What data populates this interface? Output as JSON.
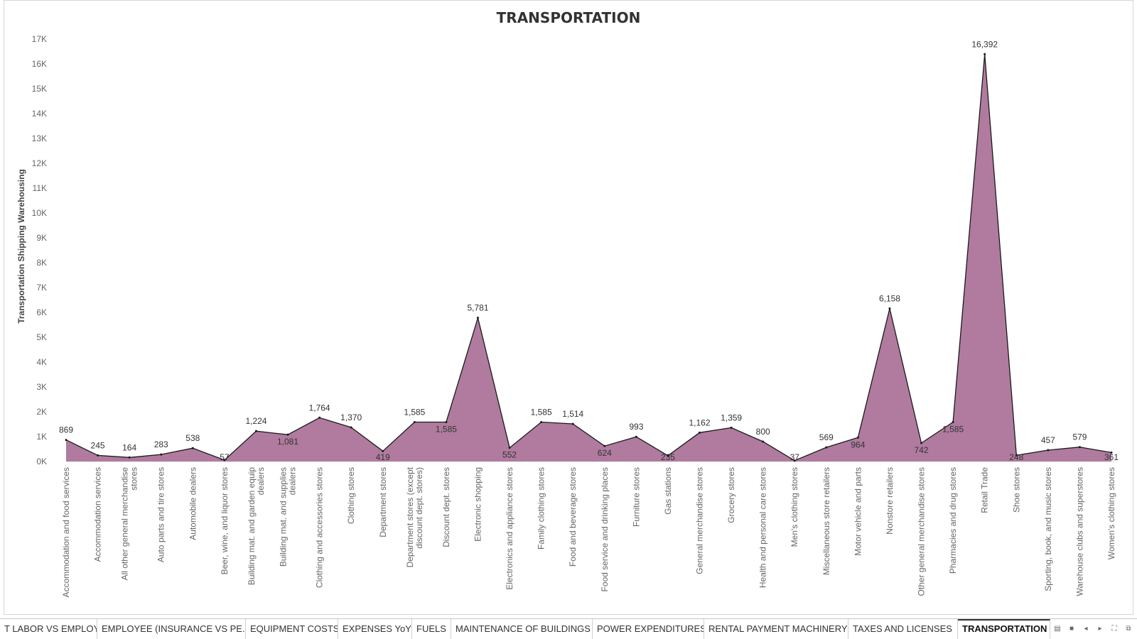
{
  "chart_data": {
    "type": "area",
    "title": "TRANSPORTATION",
    "xlabel": "",
    "ylabel": "Transportation Shipping Warehousing",
    "ylim": [
      0,
      17000
    ],
    "y_ticks": [
      "0K",
      "1K",
      "2K",
      "3K",
      "4K",
      "5K",
      "6K",
      "7K",
      "8K",
      "9K",
      "10K",
      "11K",
      "12K",
      "13K",
      "14K",
      "15K",
      "16K",
      "17K"
    ],
    "grid": false,
    "fill_color": "#b07b9f",
    "line_color": "#1a1a1a",
    "categories": [
      [
        "Accommodation and food services"
      ],
      [
        "Accommodation services"
      ],
      [
        "All other general merchandise",
        "stores"
      ],
      [
        "Auto parts and tire stores"
      ],
      [
        "Automobile dealers"
      ],
      [
        "Beer, wine, and liquor stores"
      ],
      [
        "Building mat. and garden equip",
        "dealers"
      ],
      [
        "Building mat. and supplies",
        "dealers"
      ],
      [
        "Clothing and accessories stores"
      ],
      [
        "Clothing stores"
      ],
      [
        "Department stores"
      ],
      [
        "Department stores (except",
        "discount dept. stores)"
      ],
      [
        "Discount dept. stores"
      ],
      [
        "Electronic shopping"
      ],
      [
        "Electronics and appliance stores"
      ],
      [
        "Family clothing stores"
      ],
      [
        "Food and beverage stores"
      ],
      [
        "Food service and drinking places"
      ],
      [
        "Furniture stores"
      ],
      [
        "Gas stations"
      ],
      [
        "General merchandise stores"
      ],
      [
        "Grocery stores"
      ],
      [
        "Health and personal care stores"
      ],
      [
        "Men's clothing stores"
      ],
      [
        "Miscellaneous store retailers"
      ],
      [
        "Motor vehicle and parts"
      ],
      [
        "Nonstore retailers"
      ],
      [
        "Other general merchandise stores"
      ],
      [
        "Pharmacies and drug stores"
      ],
      [
        "Retail Trade"
      ],
      [
        "Shoe stores"
      ],
      [
        "Sporting, book, and music stores"
      ],
      [
        "Warehouse clubs and superstores"
      ],
      [
        "Women's clothing stores"
      ]
    ],
    "values": [
      869,
      245,
      164,
      283,
      538,
      57,
      1224,
      1081,
      1764,
      1370,
      419,
      1585,
      1585,
      5781,
      552,
      1585,
      1514,
      624,
      993,
      235,
      1162,
      1359,
      800,
      37,
      569,
      964,
      6158,
      742,
      1585,
      16392,
      248,
      457,
      579,
      361
    ],
    "data_labels": [
      "869",
      "245",
      "164",
      "283",
      "538",
      "57",
      "1,224",
      "1,081",
      "1,764",
      "1,370",
      "419",
      "1,585",
      "1,585",
      "5,781",
      "552",
      "1,585",
      "1,514",
      "624",
      "993",
      "235",
      "1,162",
      "1,359",
      "800",
      "37",
      "569",
      "964",
      "6,158",
      "742",
      "1,585",
      "16,392",
      "248",
      "457",
      "579",
      "361"
    ],
    "label_position": [
      "above",
      "above",
      "above",
      "above",
      "above",
      "below",
      "above",
      "below",
      "above",
      "above",
      "below",
      "above",
      "below",
      "above",
      "below",
      "above",
      "above",
      "below",
      "above",
      "below",
      "above",
      "above",
      "above",
      "below",
      "above",
      "below",
      "above",
      "below",
      "below",
      "above",
      "below",
      "above",
      "above",
      "below"
    ]
  },
  "tabs": [
    {
      "label": "T LABOR VS EMPLOY...",
      "active": false
    },
    {
      "label": "EMPLOYEE (INSURANCE VS PE...",
      "active": false
    },
    {
      "label": "EQUIPMENT COSTS",
      "active": false
    },
    {
      "label": "EXPENSES YoY",
      "active": false
    },
    {
      "label": "FUELS",
      "active": false
    },
    {
      "label": "MAINTENANCE OF BUILDINGS",
      "active": false
    },
    {
      "label": "POWER EXPENDITURES",
      "active": false
    },
    {
      "label": "RENTAL PAYMENT MACHINERY",
      "active": false
    },
    {
      "label": "TAXES AND LICENSES",
      "active": false
    },
    {
      "label": "TRANSPORTATION",
      "active": true
    }
  ],
  "nav_icons": [
    "grid-view-icon",
    "filmstrip-icon",
    "prev-sheet-icon",
    "next-sheet-icon",
    "fullscreen-icon",
    "present-icon"
  ]
}
